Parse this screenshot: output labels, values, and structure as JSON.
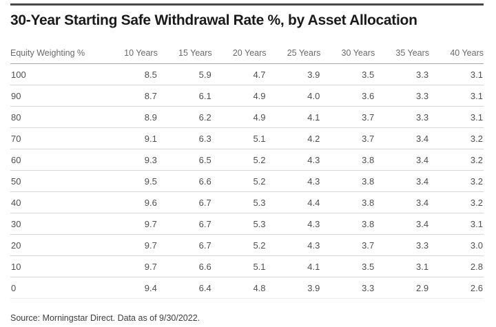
{
  "page": {
    "title": "30-Year Starting Safe Withdrawal Rate %, by Asset Allocation",
    "source": "Source: Morningstar Direct. Data as of 9/30/2022."
  },
  "table": {
    "columns": [
      "Equity Weighting %",
      "10 Years",
      "15 Years",
      "20 Years",
      "25 Years",
      "30 Years",
      "35 Years",
      "40 Years"
    ],
    "rows": [
      {
        "label": "100",
        "values": [
          "8.5",
          "5.9",
          "4.7",
          "3.9",
          "3.5",
          "3.3",
          "3.1"
        ]
      },
      {
        "label": "90",
        "values": [
          "8.7",
          "6.1",
          "4.9",
          "4.0",
          "3.6",
          "3.3",
          "3.1"
        ]
      },
      {
        "label": "80",
        "values": [
          "8.9",
          "6.2",
          "4.9",
          "4.1",
          "3.7",
          "3.3",
          "3.1"
        ]
      },
      {
        "label": "70",
        "values": [
          "9.1",
          "6.3",
          "5.1",
          "4.2",
          "3.7",
          "3.4",
          "3.2"
        ]
      },
      {
        "label": "60",
        "values": [
          "9.3",
          "6.5",
          "5.2",
          "4.3",
          "3.8",
          "3.4",
          "3.2"
        ]
      },
      {
        "label": "50",
        "values": [
          "9.5",
          "6.6",
          "5.2",
          "4.3",
          "3.8",
          "3.4",
          "3.2"
        ]
      },
      {
        "label": "40",
        "values": [
          "9.6",
          "6.7",
          "5.3",
          "4.4",
          "3.8",
          "3.4",
          "3.2"
        ]
      },
      {
        "label": "30",
        "values": [
          "9.7",
          "6.7",
          "5.3",
          "4.3",
          "3.8",
          "3.4",
          "3.1"
        ]
      },
      {
        "label": "20",
        "values": [
          "9.7",
          "6.7",
          "5.2",
          "4.3",
          "3.7",
          "3.3",
          "3.0"
        ]
      },
      {
        "label": "10",
        "values": [
          "9.7",
          "6.6",
          "5.1",
          "4.1",
          "3.5",
          "3.1",
          "2.8"
        ]
      },
      {
        "label": "0",
        "values": [
          "9.4",
          "6.4",
          "4.8",
          "3.9",
          "3.3",
          "2.9",
          "2.6"
        ]
      }
    ]
  },
  "chart_data": {
    "type": "table",
    "title": "30-Year Starting Safe Withdrawal Rate %, by Asset Allocation",
    "row_header": "Equity Weighting %",
    "categories": [
      100,
      90,
      80,
      70,
      60,
      50,
      40,
      30,
      20,
      10,
      0
    ],
    "series": [
      {
        "name": "10 Years",
        "values": [
          8.5,
          8.7,
          8.9,
          9.1,
          9.3,
          9.5,
          9.6,
          9.7,
          9.7,
          9.7,
          9.4
        ]
      },
      {
        "name": "15 Years",
        "values": [
          5.9,
          6.1,
          6.2,
          6.3,
          6.5,
          6.6,
          6.7,
          6.7,
          6.7,
          6.6,
          6.4
        ]
      },
      {
        "name": "20 Years",
        "values": [
          4.7,
          4.9,
          4.9,
          5.1,
          5.2,
          5.2,
          5.3,
          5.3,
          5.2,
          5.1,
          4.8
        ]
      },
      {
        "name": "25 Years",
        "values": [
          3.9,
          4.0,
          4.1,
          4.2,
          4.3,
          4.3,
          4.4,
          4.3,
          4.3,
          4.1,
          3.9
        ]
      },
      {
        "name": "30 Years",
        "values": [
          3.5,
          3.6,
          3.7,
          3.7,
          3.8,
          3.8,
          3.8,
          3.8,
          3.7,
          3.5,
          3.3
        ]
      },
      {
        "name": "35 Years",
        "values": [
          3.3,
          3.3,
          3.3,
          3.4,
          3.4,
          3.4,
          3.4,
          3.4,
          3.3,
          3.1,
          2.9
        ]
      },
      {
        "name": "40 Years",
        "values": [
          3.1,
          3.1,
          3.1,
          3.2,
          3.2,
          3.2,
          3.2,
          3.1,
          3.0,
          2.8,
          2.6
        ]
      }
    ],
    "source_note": "Source: Morningstar Direct. Data as of 9/30/2022."
  },
  "colors": {
    "top_rule": "#464646",
    "title_text": "#1a1a1a",
    "header_text": "#696969",
    "header_rule": "#ababab",
    "body_text": "#4f4f4f",
    "row_rule": "#d7d7d7",
    "source_text": "#3e3e3e",
    "background": "#ffffff"
  }
}
